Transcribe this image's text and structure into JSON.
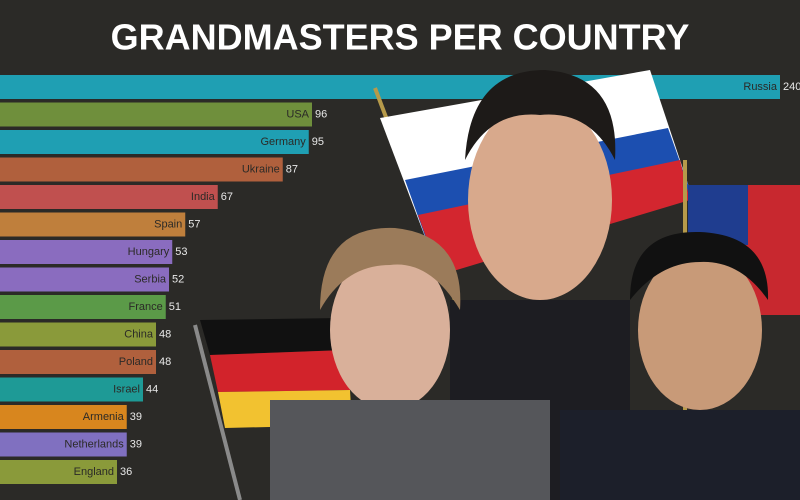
{
  "chart_data": {
    "type": "bar",
    "title": "GRANDMASTERS PER COUNTRY",
    "categories": [
      "Russia",
      "USA",
      "Germany",
      "Ukraine",
      "India",
      "Spain",
      "Hungary",
      "Serbia",
      "France",
      "China",
      "Poland",
      "Israel",
      "Armenia",
      "Netherlands",
      "England"
    ],
    "values": [
      240,
      96,
      95,
      87,
      67,
      57,
      53,
      52,
      51,
      48,
      48,
      44,
      39,
      39,
      36
    ],
    "colors": [
      "#1f9fb3",
      "#6f8f3c",
      "#1f9fb3",
      "#b0603d",
      "#c0504f",
      "#bf7f3c",
      "#8a6cbf",
      "#8a6cbf",
      "#5b9a48",
      "#8a9a3a",
      "#b0603d",
      "#1e9a96",
      "#d8861e",
      "#8070c0",
      "#8a9a3a"
    ]
  }
}
